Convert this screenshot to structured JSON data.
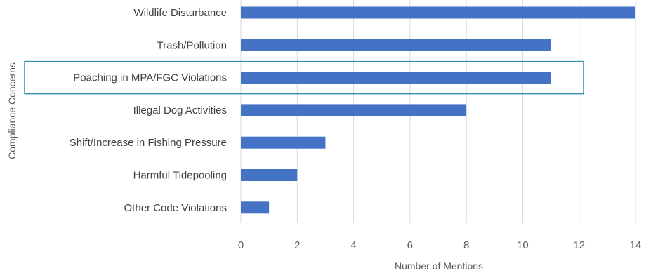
{
  "chart_data": {
    "type": "bar",
    "orientation": "horizontal",
    "categories": [
      "Wildlife Disturbance",
      "Trash/Pollution",
      "Poaching in MPA/FGC Violations",
      "Illegal Dog Activities",
      "Shift/Increase in Fishing Pressure",
      "Harmful Tidepooling",
      "Other Code Violations"
    ],
    "values": [
      14,
      11,
      11,
      8,
      3,
      2,
      1
    ],
    "xlabel": "Number of Mentions",
    "ylabel": "Compliance Concerns",
    "xlim": [
      0,
      14
    ],
    "xticks": [
      "0",
      "2",
      "4",
      "6",
      "8",
      "10",
      "12",
      "14"
    ],
    "grid": "vertical",
    "highlighted_category": "Poaching in MPA/FGC Violations",
    "colors": {
      "bar": "#4472c4",
      "highlight_box": "#2e8fb0",
      "grid": "#d9d9d9"
    }
  }
}
